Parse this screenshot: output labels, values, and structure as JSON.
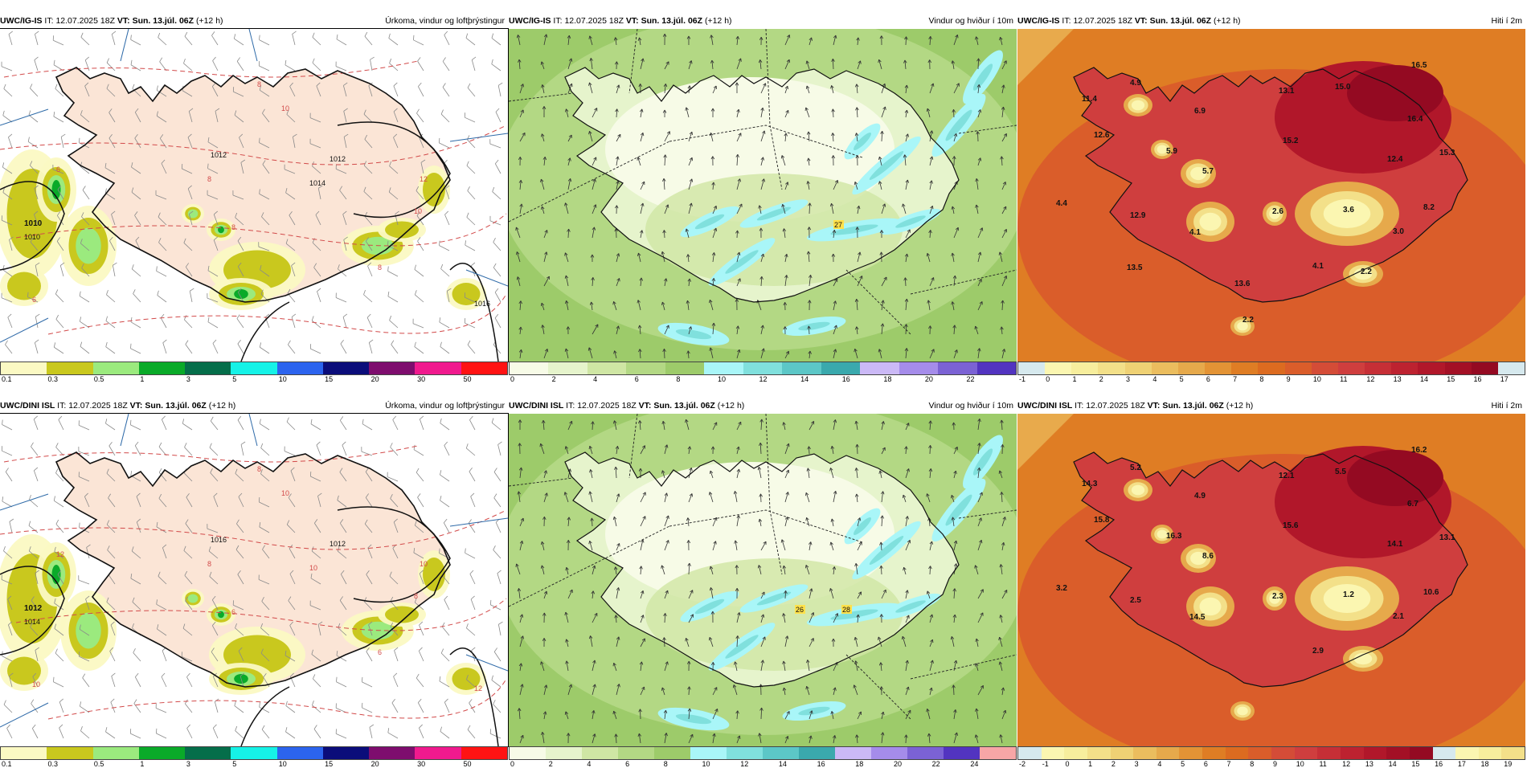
{
  "shared": {
    "init_label": "IT:",
    "init_value": "12.07.2025 18Z",
    "valid_label": "VT:",
    "valid_value": "Sun. 13.júl. 06Z",
    "lead": "(+12 h)"
  },
  "colors": {
    "precip": [
      "#fbf9c3",
      "#c9c81e",
      "#9bea7e",
      "#0aaa29",
      "#056e4a",
      "#16f2e7",
      "#2c64ee",
      "#0b0d7a",
      "#7e0d6e",
      "#f01a8e",
      "#ff1313"
    ],
    "wind": [
      "#f7fbe7",
      "#e6f4cc",
      "#cfe6a4",
      "#b3d884",
      "#9dcb6a",
      "#a9f6f8",
      "#80e0dd",
      "#5cc7c7",
      "#3aa9ad",
      "#cbb9f6",
      "#a58cea",
      "#7b62d4",
      "#5234c0",
      "#f7a6a6"
    ],
    "temp": [
      "#d6e9ee",
      "#fbf6b1",
      "#f7ee9d",
      "#f3e089",
      "#efd174",
      "#ebbd5e",
      "#e6a94b",
      "#e39335",
      "#df7d24",
      "#dc6b20",
      "#da5d2a",
      "#d44c37",
      "#cf3e3e",
      "#c62f36",
      "#bd2230",
      "#b1172a",
      "#a31025",
      "#940a22"
    ],
    "land_pink": "#fbe5d6",
    "contour_red": "#d24a4a",
    "contour_black": "#111111",
    "coast": "#111111"
  },
  "rows": [
    {
      "panels": [
        {
          "source": "UWC/IG-IS",
          "subtitle": "Úrkoma, vindur og loftþrýstingur",
          "kind": "precip",
          "ticks": [
            "0.1",
            "0.3",
            "0.5",
            "1",
            "3",
            "5",
            "10",
            "15",
            "20",
            "30",
            "50"
          ],
          "labels": [
            "1010",
            "1010",
            "1012",
            "1012",
            "1014",
            "1016",
            "10",
            "8",
            "8",
            "8",
            "6",
            "12",
            "10",
            "8",
            "6"
          ]
        },
        {
          "source": "UWC/IG-IS",
          "subtitle": "Vindur og hviður í 10m",
          "kind": "wind",
          "ticks": [
            "0",
            "2",
            "4",
            "6",
            "8",
            "10",
            "12",
            "14",
            "16",
            "18",
            "20",
            "22"
          ],
          "labels": [
            "27"
          ]
        },
        {
          "source": "UWC/IG-IS",
          "subtitle": "Hiti í 2m",
          "kind": "temp",
          "ticks": [
            "-1",
            "0",
            "1",
            "2",
            "3",
            "4",
            "5",
            "6",
            "7",
            "8",
            "9",
            "10",
            "11",
            "12",
            "13",
            "14",
            "15",
            "16",
            "17"
          ],
          "labels": [
            "16.5",
            "4.9",
            "11.4",
            "13.1",
            "15.0",
            "6.9",
            "12.6",
            "15.2",
            "16.4",
            "5.9",
            "12.4",
            "15.3",
            "5.7",
            "4.4",
            "2.6",
            "3.6",
            "8.2",
            "12.9",
            "4.1",
            "3.0",
            "4.1",
            "2.2",
            "13.5",
            "13.6",
            "2.2"
          ]
        }
      ]
    },
    {
      "panels": [
        {
          "source": "UWC/DINI ISL",
          "subtitle": "Úrkoma, vindur og loftþrýstingur",
          "kind": "precip",
          "ticks": [
            "0.1",
            "0.3",
            "0.5",
            "1",
            "3",
            "5",
            "10",
            "15",
            "20",
            "30",
            "50"
          ],
          "labels": [
            "1012",
            "1014",
            "1016",
            "1012",
            "10",
            "12",
            "10",
            "8",
            "8",
            "6",
            "12",
            "10",
            "8",
            "6",
            "10"
          ]
        },
        {
          "source": "UWC/DINI ISL",
          "subtitle": "Vindur og hviður í 10m",
          "kind": "wind",
          "ticks": [
            "0",
            "2",
            "4",
            "6",
            "8",
            "10",
            "12",
            "14",
            "16",
            "18",
            "20",
            "22",
            "24"
          ],
          "labels": [
            "26",
            "28"
          ]
        },
        {
          "source": "UWC/DINI ISL",
          "subtitle": "Hiti í 2m",
          "kind": "temp",
          "ticks": [
            "-2",
            "-1",
            "0",
            "1",
            "2",
            "3",
            "4",
            "5",
            "6",
            "7",
            "8",
            "9",
            "10",
            "11",
            "12",
            "13",
            "14",
            "15",
            "16",
            "17",
            "18",
            "19"
          ],
          "labels": [
            "16.2",
            "5.2",
            "14.3",
            "12.1",
            "5.5",
            "4.9",
            "15.8",
            "15.6",
            "6.7",
            "16.3",
            "14.1",
            "13.1",
            "8.6",
            "3.2",
            "2.3",
            "1.2",
            "10.6",
            "2.5",
            "14.5",
            "2.1",
            "2.9"
          ]
        }
      ]
    }
  ]
}
